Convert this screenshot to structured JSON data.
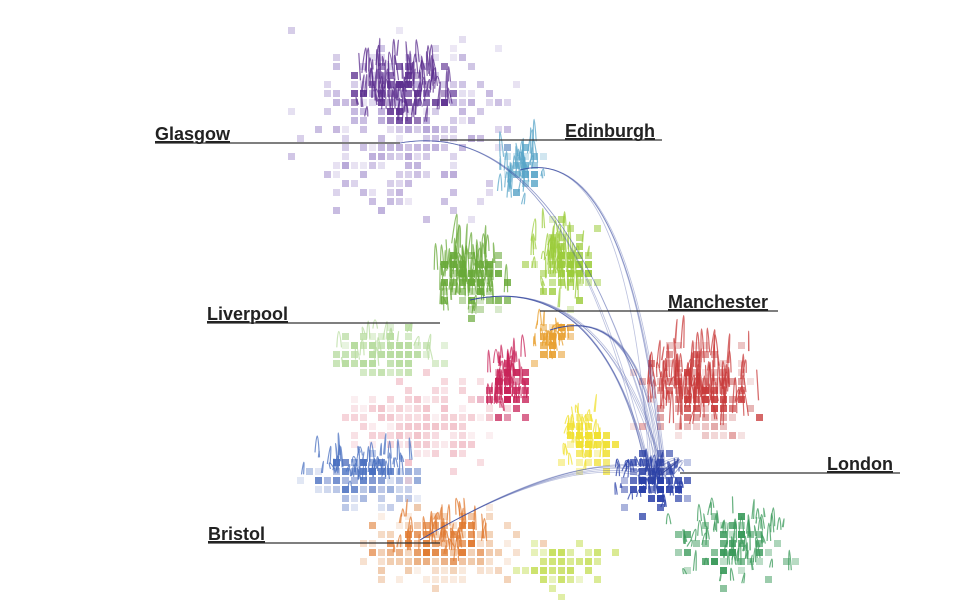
{
  "labels": [
    "Glasgow",
    "Edinburgh",
    "Liverpool",
    "Manchester",
    "London",
    "Bristol"
  ]
}
